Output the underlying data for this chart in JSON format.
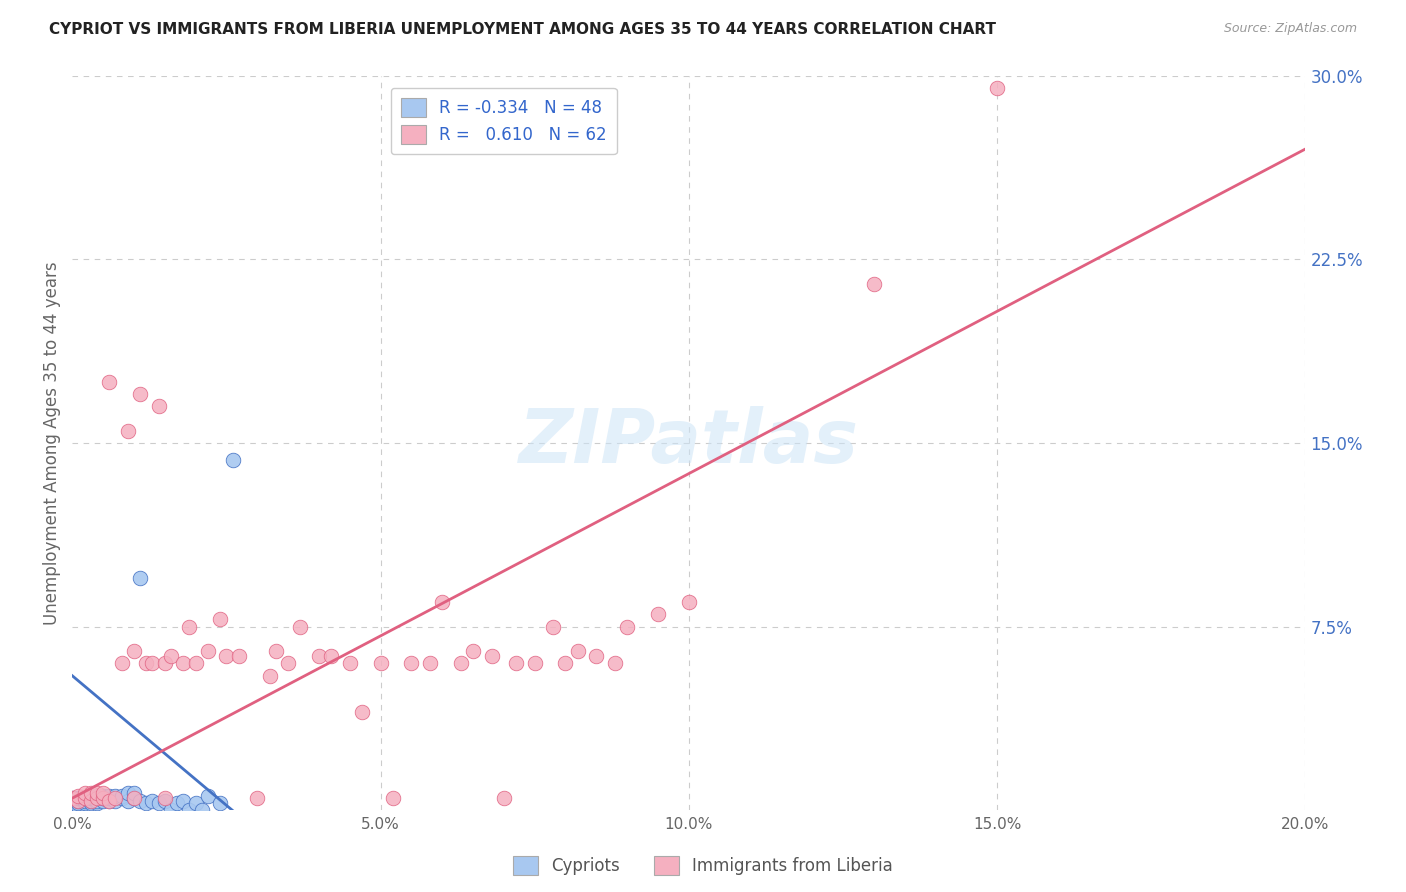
{
  "title": "CYPRIOT VS IMMIGRANTS FROM LIBERIA UNEMPLOYMENT AMONG AGES 35 TO 44 YEARS CORRELATION CHART",
  "source": "Source: ZipAtlas.com",
  "ylabel": "Unemployment Among Ages 35 to 44 years",
  "xlim": [
    0.0,
    0.2
  ],
  "ylim": [
    0.0,
    0.3
  ],
  "grid_color": "#cccccc",
  "background_color": "#ffffff",
  "watermark": "ZIPatlas",
  "cypriot_color": "#a8c8f0",
  "liberia_color": "#f5b0c0",
  "cypriot_line_color": "#4472c4",
  "liberia_line_color": "#e06080",
  "cypriot_x": [
    0.0,
    0.0,
    0.0,
    0.0,
    0.0,
    0.001,
    0.001,
    0.001,
    0.001,
    0.002,
    0.002,
    0.002,
    0.003,
    0.003,
    0.003,
    0.003,
    0.004,
    0.004,
    0.004,
    0.005,
    0.005,
    0.005,
    0.006,
    0.006,
    0.006,
    0.007,
    0.007,
    0.008,
    0.008,
    0.009,
    0.009,
    0.01,
    0.01,
    0.011,
    0.011,
    0.012,
    0.013,
    0.014,
    0.015,
    0.016,
    0.017,
    0.018,
    0.019,
    0.02,
    0.021,
    0.022,
    0.024,
    0.026
  ],
  "cypriot_y": [
    0.0,
    0.002,
    0.003,
    0.004,
    0.005,
    0.002,
    0.003,
    0.004,
    0.005,
    0.003,
    0.004,
    0.005,
    0.003,
    0.004,
    0.005,
    0.006,
    0.003,
    0.004,
    0.006,
    0.004,
    0.005,
    0.006,
    0.004,
    0.005,
    0.006,
    0.004,
    0.006,
    0.005,
    0.006,
    0.004,
    0.007,
    0.005,
    0.007,
    0.004,
    0.095,
    0.003,
    0.004,
    0.003,
    0.004,
    0.0,
    0.003,
    0.004,
    0.0,
    0.003,
    0.0,
    0.006,
    0.003,
    0.143
  ],
  "liberia_x": [
    0.0,
    0.001,
    0.001,
    0.002,
    0.002,
    0.003,
    0.003,
    0.004,
    0.004,
    0.005,
    0.005,
    0.006,
    0.006,
    0.007,
    0.008,
    0.009,
    0.01,
    0.01,
    0.011,
    0.012,
    0.013,
    0.014,
    0.015,
    0.015,
    0.016,
    0.018,
    0.019,
    0.02,
    0.022,
    0.024,
    0.025,
    0.027,
    0.03,
    0.032,
    0.033,
    0.035,
    0.037,
    0.04,
    0.042,
    0.045,
    0.047,
    0.05,
    0.052,
    0.055,
    0.058,
    0.06,
    0.063,
    0.065,
    0.068,
    0.07,
    0.072,
    0.075,
    0.078,
    0.08,
    0.082,
    0.085,
    0.088,
    0.09,
    0.095,
    0.1,
    0.13,
    0.15
  ],
  "liberia_y": [
    0.005,
    0.004,
    0.006,
    0.005,
    0.007,
    0.004,
    0.007,
    0.005,
    0.007,
    0.005,
    0.007,
    0.004,
    0.175,
    0.005,
    0.06,
    0.155,
    0.005,
    0.065,
    0.17,
    0.06,
    0.06,
    0.165,
    0.005,
    0.06,
    0.063,
    0.06,
    0.075,
    0.06,
    0.065,
    0.078,
    0.063,
    0.063,
    0.005,
    0.055,
    0.065,
    0.06,
    0.075,
    0.063,
    0.063,
    0.06,
    0.04,
    0.06,
    0.005,
    0.06,
    0.06,
    0.085,
    0.06,
    0.065,
    0.063,
    0.005,
    0.06,
    0.06,
    0.075,
    0.06,
    0.065,
    0.063,
    0.06,
    0.075,
    0.08,
    0.085,
    0.215,
    0.295
  ],
  "cyp_line_x0": 0.0,
  "cyp_line_x1": 0.026,
  "cyp_line_y0": 0.055,
  "cyp_line_y1": 0.0,
  "lib_line_x0": 0.0,
  "lib_line_x1": 0.2,
  "lib_line_y0": 0.005,
  "lib_line_y1": 0.27
}
